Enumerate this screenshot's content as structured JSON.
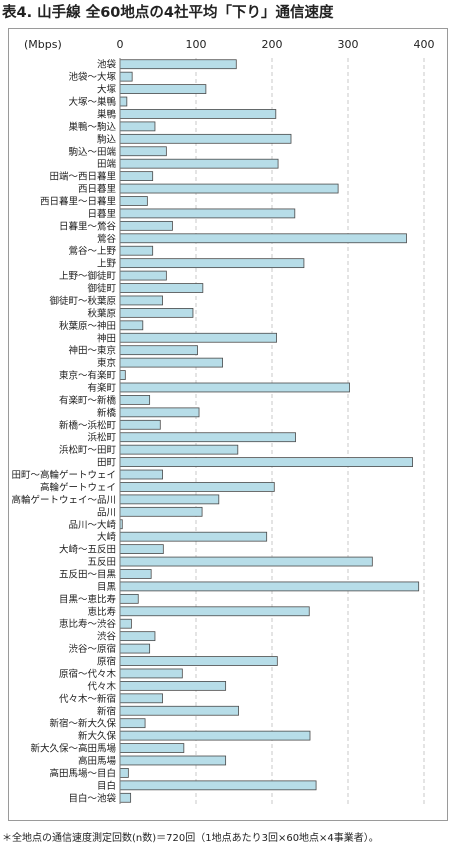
{
  "header": {
    "title": "表4. 山手線 全60地点の4社平均「下り」通信速度"
  },
  "footer": {
    "note": "＊全地点の通信速度測定回数(n数)＝720回（1地点あたり3回×60地点×4事業者）。"
  },
  "chart_data": {
    "type": "bar",
    "orientation": "horizontal",
    "unit_label": "(Mbps)",
    "xlim": [
      0,
      400
    ],
    "ticks": [
      0,
      100,
      200,
      300,
      400
    ],
    "grid": true,
    "bar_color": "#b7dde8",
    "bar_edge_color": "#4a4a4a",
    "categories": [
      "池袋",
      "池袋～大塚",
      "大塚",
      "大塚～巣鴨",
      "巣鴨",
      "巣鴨～駒込",
      "駒込",
      "駒込～田端",
      "田端",
      "田端～西日暮里",
      "西日暮里",
      "西日暮里～日暮里",
      "日暮里",
      "日暮里～鶯谷",
      "鶯谷",
      "鶯谷～上野",
      "上野",
      "上野～御徒町",
      "御徒町",
      "御徒町～秋葉原",
      "秋葉原",
      "秋葉原～神田",
      "神田",
      "神田～東京",
      "東京",
      "東京～有楽町",
      "有楽町",
      "有楽町～新橋",
      "新橋",
      "新橋～浜松町",
      "浜松町",
      "浜松町～田町",
      "田町",
      "田町～高輪ゲートウェイ",
      "高輪ゲートウェイ",
      "高輪ゲートウェイ～品川",
      "品川",
      "品川～大崎",
      "大崎",
      "大崎～五反田",
      "五反田",
      "五反田～目黒",
      "目黒",
      "目黒～恵比寿",
      "恵比寿",
      "恵比寿～渋谷",
      "渋谷",
      "渋谷～原宿",
      "原宿",
      "原宿～代々木",
      "代々木",
      "代々木～新宿",
      "新宿",
      "新宿～新大久保",
      "新大久保",
      "新大久保～高田馬場",
      "高田馬場",
      "高田馬場～目白",
      "目白",
      "目白～池袋"
    ],
    "values": [
      153,
      16,
      113,
      9,
      205,
      46,
      225,
      61,
      208,
      43,
      287,
      36,
      230,
      69,
      377,
      43,
      242,
      61,
      109,
      56,
      96,
      30,
      206,
      102,
      135,
      7,
      302,
      39,
      104,
      53,
      231,
      155,
      385,
      56,
      203,
      130,
      108,
      3,
      193,
      57,
      332,
      41,
      393,
      24,
      249,
      15,
      46,
      39,
      207,
      82,
      139,
      56,
      156,
      33,
      250,
      84,
      139,
      11,
      258,
      14
    ]
  }
}
